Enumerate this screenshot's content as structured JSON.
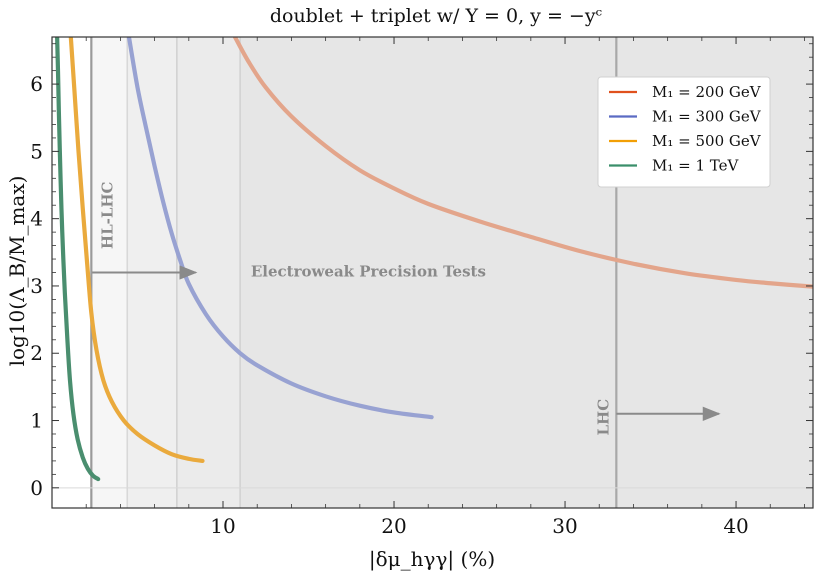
{
  "chart_data": {
    "type": "line",
    "title": "doublet + triplet w/ Y = 0,  y = −yᶜ",
    "xlabel": "|δμ_hγγ| (%)",
    "ylabel": "log10(Λ_B/M_max)",
    "xlim": [
      0,
      44.5
    ],
    "ylim": [
      -0.3,
      6.7
    ],
    "xticks": [
      10,
      20,
      30,
      40
    ],
    "yticks": [
      0,
      1,
      2,
      3,
      4,
      5,
      6
    ],
    "grid": false,
    "legend_position": "top-right",
    "regions": [
      {
        "from": 2.3,
        "to": 44.5,
        "shade": "#f6f6f6"
      },
      {
        "from": 4.4,
        "to": 44.5,
        "shade": "#efefef"
      },
      {
        "from": 7.3,
        "to": 44.5,
        "shade": "#ebebeb"
      },
      {
        "from": 11.0,
        "to": 44.5,
        "shade": "#e6e6e6"
      }
    ],
    "vlines": [
      {
        "x": 2.3,
        "color": "#9a9a9a",
        "width": 2.2
      },
      {
        "x": 4.4,
        "color": "#d8d8d8",
        "width": 1.6
      },
      {
        "x": 7.3,
        "color": "#d2d2d2",
        "width": 1.6
      },
      {
        "x": 11.0,
        "color": "#d2d2d2",
        "width": 1.6
      },
      {
        "x": 33.0,
        "color": "#a8a8a8",
        "width": 2.2
      }
    ],
    "annotations": [
      {
        "id": "hl-lhc",
        "text": "HL-LHC",
        "x": 3.3,
        "y": 4.05,
        "rotate": -90,
        "size": 15,
        "arrow_from": [
          2.35,
          3.2
        ],
        "arrow_to": [
          8.4,
          3.2
        ]
      },
      {
        "id": "ewpt",
        "text": "Electroweak Precision Tests",
        "x": 18.5,
        "y": 3.2,
        "rotate": 0,
        "size": 15
      },
      {
        "id": "lhc",
        "text": "LHC",
        "x": 32.3,
        "y": 1.05,
        "rotate": -90,
        "size": 15,
        "arrow_from": [
          33.0,
          1.1
        ],
        "arrow_to": [
          39.0,
          1.1
        ]
      }
    ],
    "series": [
      {
        "name": "M₁ = 200 GeV",
        "color": "#e0511d",
        "curve_color": "#e3a58b",
        "points": [
          [
            10.7,
            6.7
          ],
          [
            11.5,
            6.33
          ],
          [
            12.5,
            5.95
          ],
          [
            14,
            5.52
          ],
          [
            16,
            5.08
          ],
          [
            18,
            4.72
          ],
          [
            20,
            4.45
          ],
          [
            22,
            4.22
          ],
          [
            25,
            3.96
          ],
          [
            28,
            3.73
          ],
          [
            31,
            3.51
          ],
          [
            34,
            3.33
          ],
          [
            37,
            3.19
          ],
          [
            40,
            3.09
          ],
          [
            42,
            3.04
          ],
          [
            44.5,
            2.99
          ]
        ]
      },
      {
        "name": "M₁ = 300 GeV",
        "color": "#5b6bc3",
        "curve_color": "#98a2d2",
        "points": [
          [
            4.5,
            6.7
          ],
          [
            5.0,
            5.95
          ],
          [
            5.5,
            5.35
          ],
          [
            6.0,
            4.78
          ],
          [
            6.5,
            4.25
          ],
          [
            7.0,
            3.78
          ],
          [
            7.5,
            3.38
          ],
          [
            8.0,
            3.03
          ],
          [
            9.0,
            2.58
          ],
          [
            10.0,
            2.25
          ],
          [
            11.0,
            2.0
          ],
          [
            12.0,
            1.82
          ],
          [
            14.0,
            1.55
          ],
          [
            16.0,
            1.36
          ],
          [
            18.0,
            1.22
          ],
          [
            20.0,
            1.12
          ],
          [
            22.2,
            1.05
          ]
        ]
      },
      {
        "name": "M₁ = 500 GeV",
        "color": "#f29f05",
        "curve_color": "#eaaa3d",
        "points": [
          [
            1.1,
            6.7
          ],
          [
            1.3,
            5.95
          ],
          [
            1.55,
            5.0
          ],
          [
            1.8,
            4.15
          ],
          [
            2.05,
            3.35
          ],
          [
            2.3,
            2.6
          ],
          [
            2.6,
            2.05
          ],
          [
            3.0,
            1.6
          ],
          [
            3.5,
            1.28
          ],
          [
            4.2,
            1.0
          ],
          [
            5.0,
            0.8
          ],
          [
            6.0,
            0.63
          ],
          [
            7.0,
            0.5
          ],
          [
            8.0,
            0.43
          ],
          [
            8.8,
            0.4
          ]
        ]
      },
      {
        "name": "M₁ = 1 TeV",
        "color": "#3a8f6a",
        "curve_color": "#4a8e6f",
        "points": [
          [
            0.3,
            6.7
          ],
          [
            0.35,
            6.2
          ],
          [
            0.4,
            5.6
          ],
          [
            0.5,
            4.6
          ],
          [
            0.6,
            3.8
          ],
          [
            0.75,
            2.9
          ],
          [
            0.9,
            2.2
          ],
          [
            1.05,
            1.6
          ],
          [
            1.25,
            1.1
          ],
          [
            1.5,
            0.72
          ],
          [
            1.8,
            0.45
          ],
          [
            2.1,
            0.28
          ],
          [
            2.4,
            0.18
          ],
          [
            2.7,
            0.13
          ]
        ]
      }
    ]
  }
}
